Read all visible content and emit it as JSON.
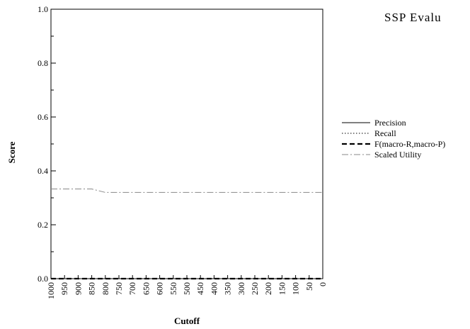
{
  "page_header": "SSP Evalu",
  "chart_data": {
    "type": "line",
    "title": "",
    "xlabel": "Cutoff",
    "ylabel": "Score",
    "x": [
      1000,
      950,
      900,
      850,
      800,
      750,
      700,
      650,
      600,
      550,
      500,
      450,
      400,
      350,
      300,
      250,
      200,
      150,
      100,
      50,
      0
    ],
    "x_tick_labels": [
      "1000",
      "950",
      "900",
      "850",
      "800",
      "750",
      "700",
      "650",
      "600",
      "550",
      "500",
      "450",
      "400",
      "350",
      "300",
      "250",
      "200",
      "150",
      "100",
      "50",
      "0"
    ],
    "xlim": [
      1000,
      0
    ],
    "ylim": [
      0.0,
      1.0
    ],
    "y_tick_labels": [
      "0.0",
      "0.2",
      "0.4",
      "0.6",
      "0.8",
      "1.0"
    ],
    "y_ticks": [
      0.0,
      0.2,
      0.4,
      0.6,
      0.8,
      1.0
    ],
    "grid": false,
    "legend_position": "right",
    "series": [
      {
        "name": "Precision",
        "style": "solid",
        "color": "#000000",
        "values": [
          0,
          0,
          0,
          0,
          0,
          0,
          0,
          0,
          0,
          0,
          0,
          0,
          0,
          0,
          0,
          0,
          0,
          0,
          0,
          0,
          0
        ]
      },
      {
        "name": "Recall",
        "style": "dotted",
        "color": "#000000",
        "values": [
          0,
          0,
          0,
          0,
          0,
          0,
          0,
          0,
          0,
          0,
          0,
          0,
          0,
          0,
          0,
          0,
          0,
          0,
          0,
          0,
          0
        ]
      },
      {
        "name": "F(macro-R,macro-P)",
        "style": "dashed",
        "color": "#000000",
        "values": [
          0,
          0,
          0,
          0,
          0,
          0,
          0,
          0,
          0,
          0,
          0,
          0,
          0,
          0,
          0,
          0,
          0,
          0,
          0,
          0,
          0
        ]
      },
      {
        "name": "Scaled Utility",
        "style": "dashdot",
        "color": "#888888",
        "values": [
          0.333,
          0.333,
          0.333,
          0.333,
          0.32,
          0.32,
          0.32,
          0.32,
          0.32,
          0.32,
          0.32,
          0.32,
          0.32,
          0.32,
          0.32,
          0.32,
          0.32,
          0.32,
          0.32,
          0.32,
          0.32
        ]
      }
    ]
  }
}
